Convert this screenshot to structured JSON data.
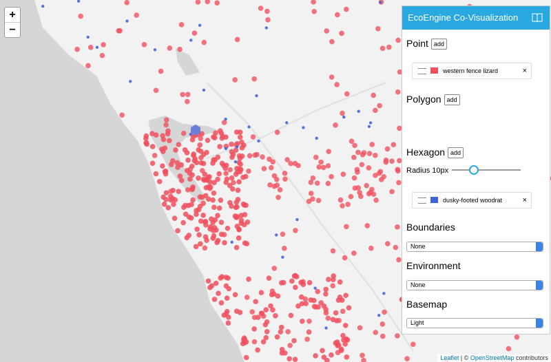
{
  "zoom": {
    "in": "+",
    "out": "−"
  },
  "panel": {
    "title": "EcoEngine Co-Visualization",
    "sections": [
      {
        "title": "Point",
        "button": "add",
        "layer": {
          "name": "western fence lizard",
          "close": "×"
        }
      },
      {
        "title": "Polygon",
        "button": "add"
      },
      {
        "title": "Hexagon",
        "button": "add",
        "radius": "Radius 10px",
        "layer": {
          "name": "dusky-footed woodrat",
          "close": "×"
        }
      },
      {
        "title": "Boundaries",
        "select": "None"
      },
      {
        "title": "Environment",
        "select": "None"
      },
      {
        "title": "Basemap",
        "select": "Light"
      }
    ]
  },
  "attribution": {
    "leaflet": "Leaflet",
    "sep": "| ©",
    "osm": "OpenStreetMap",
    "rest": "contributors"
  }
}
